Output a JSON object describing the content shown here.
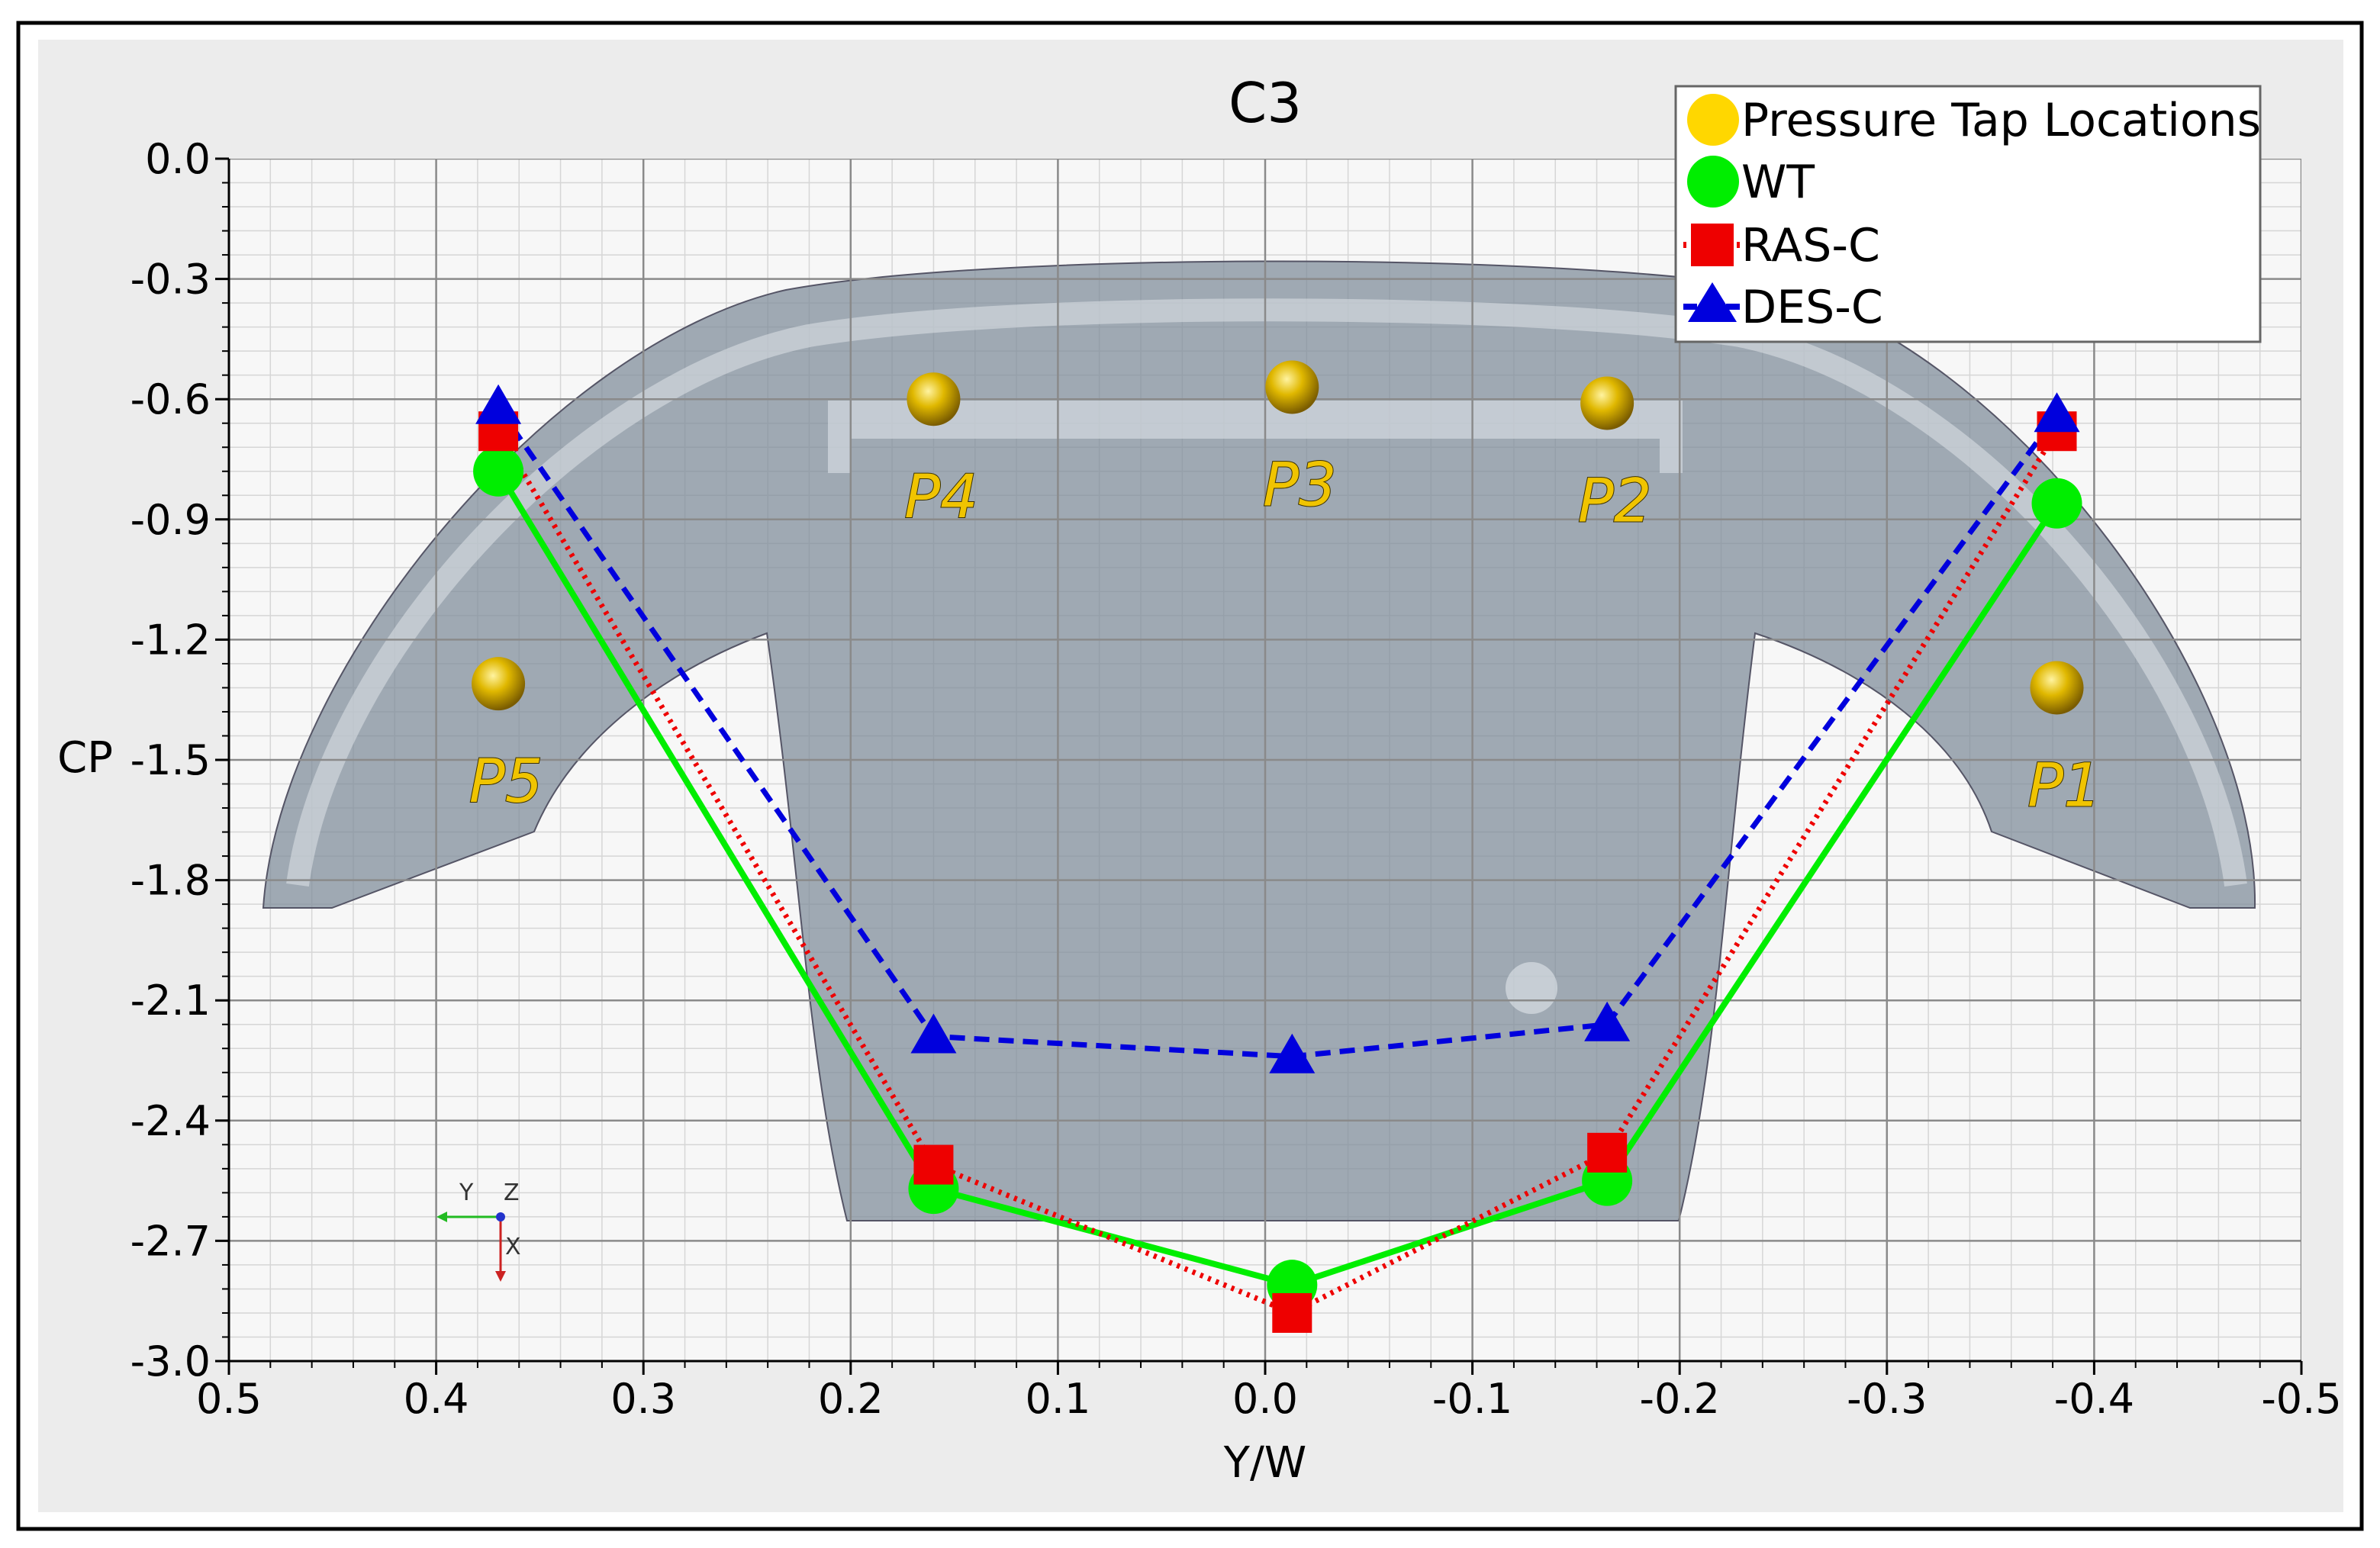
{
  "chart_data": {
    "type": "line",
    "title": "C3",
    "xlabel": "Y/W",
    "ylabel": "CP",
    "xlim": [
      0.5,
      -0.5
    ],
    "ylim": [
      -3.0,
      0.0
    ],
    "x_ticks": [
      "0.5",
      "0.4",
      "0.3",
      "0.2",
      "0.1",
      "0.0",
      "-0.1",
      "-0.2",
      "-0.3",
      "-0.4",
      "-0.5"
    ],
    "y_ticks": [
      "0.0",
      "-0.3",
      "-0.6",
      "-0.9",
      "-1.2",
      "-1.5",
      "-1.8",
      "-2.1",
      "-2.4",
      "-2.7",
      "-3.0"
    ],
    "grid": true,
    "legend_position": "top-right",
    "series": [
      {
        "name": "WT",
        "color": "#00ee00",
        "line": "solid",
        "marker": "circle",
        "x": [
          0.37,
          0.16,
          -0.013,
          -0.165,
          -0.382
        ],
        "y": [
          -0.78,
          -2.57,
          -2.81,
          -2.55,
          -0.86
        ]
      },
      {
        "name": "RAS-C",
        "color": "#ee0000",
        "line": "dotted",
        "marker": "square",
        "x": [
          0.37,
          0.16,
          -0.013,
          -0.165,
          -0.382
        ],
        "y": [
          -0.68,
          -2.51,
          -2.88,
          -2.48,
          -0.68
        ]
      },
      {
        "name": "DES-C",
        "color": "#0000dd",
        "line": "dashed",
        "marker": "triangle",
        "x": [
          0.37,
          0.16,
          -0.013,
          -0.165,
          -0.382
        ],
        "y": [
          -0.62,
          -2.19,
          -2.24,
          -2.16,
          -0.64
        ]
      }
    ],
    "pressure_taps": {
      "name": "Pressure Tap Locations",
      "color": "#ffd700",
      "labels": [
        "P1",
        "P2",
        "P3",
        "P4",
        "P5"
      ],
      "x": [
        -0.382,
        -0.165,
        -0.013,
        0.16,
        0.37
      ],
      "y": [
        -1.32,
        -0.61,
        -0.57,
        -0.6,
        -1.31
      ]
    },
    "triad_labels": [
      "Y",
      "Z",
      "X"
    ]
  }
}
